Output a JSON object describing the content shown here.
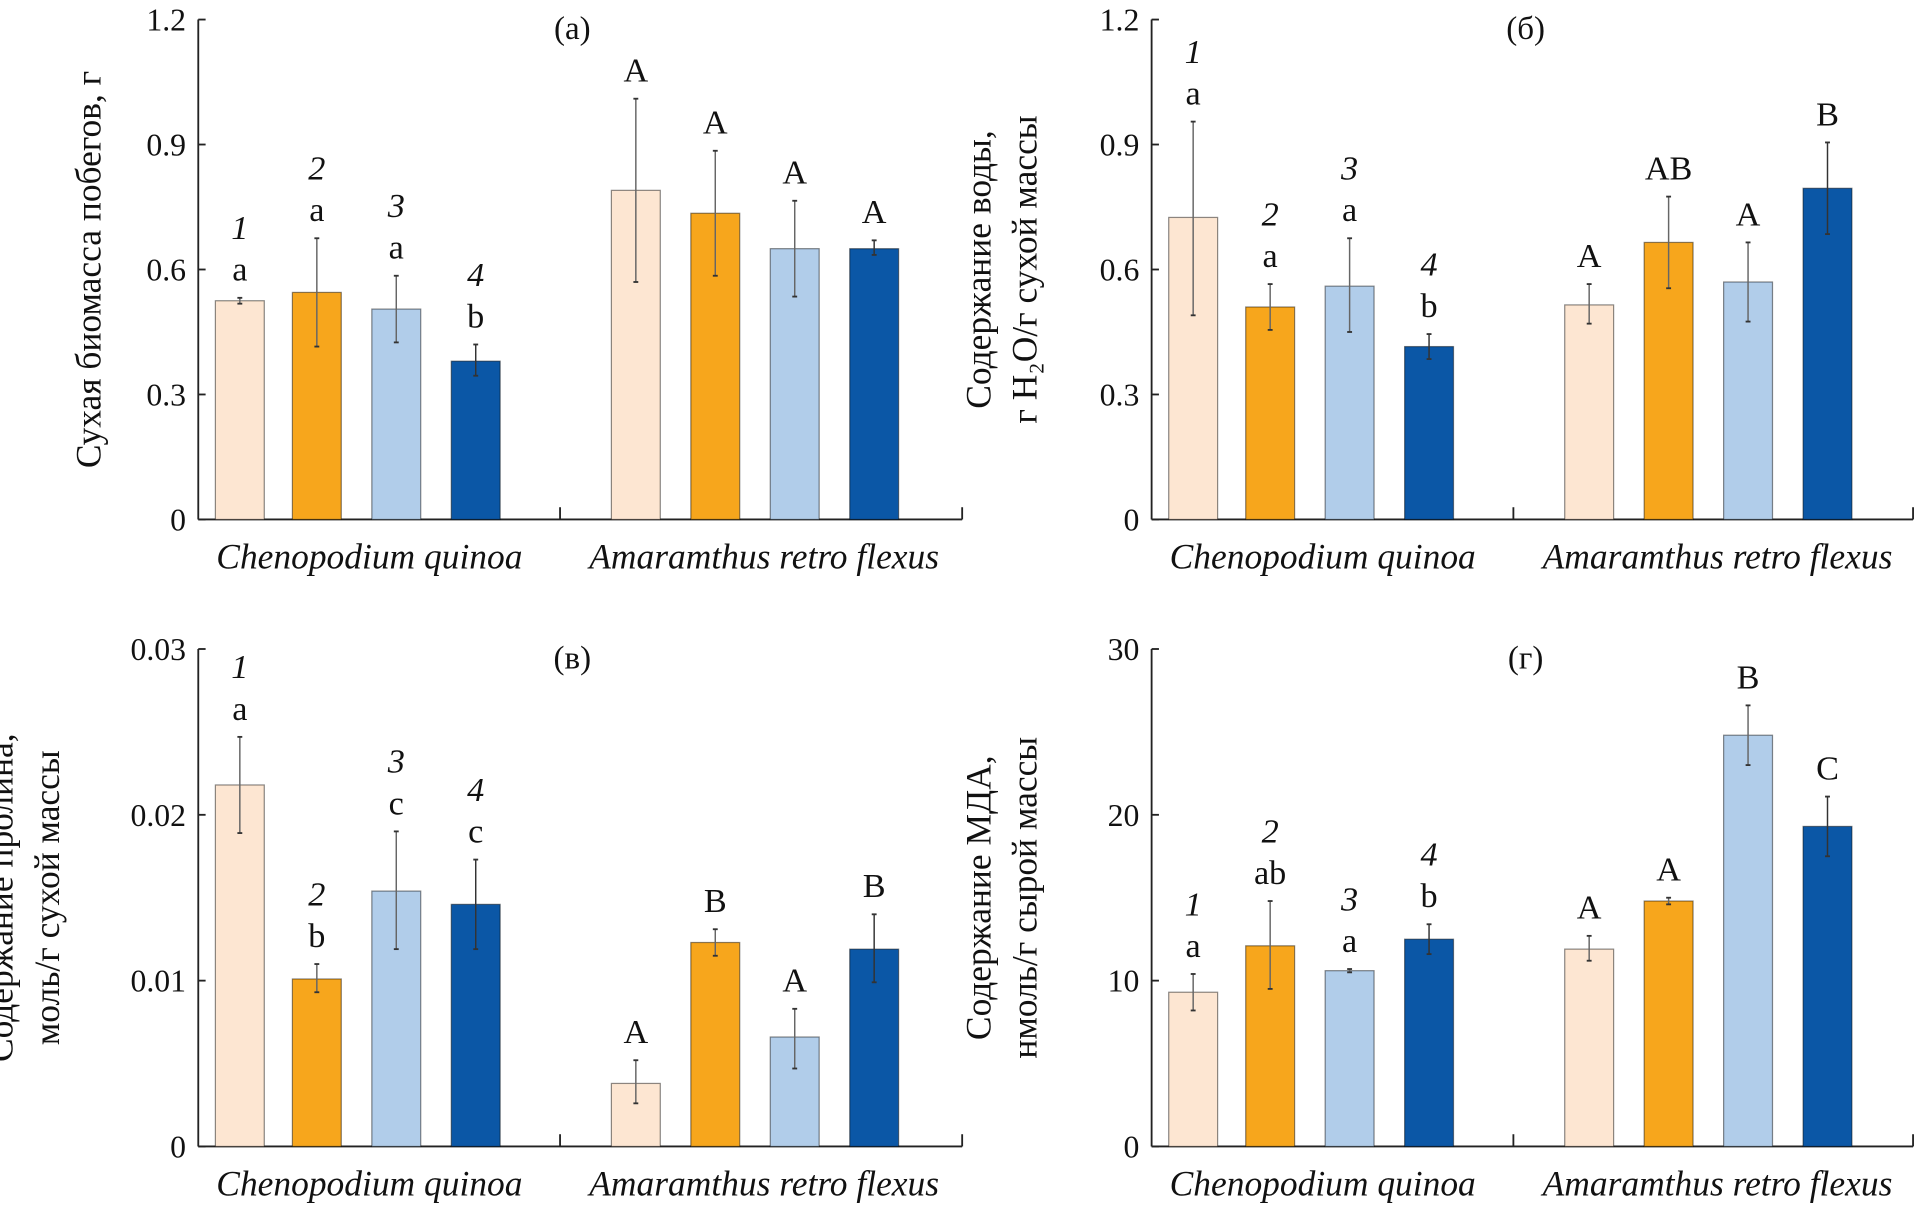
{
  "colors": [
    "#fde6d2",
    "#f7a61c",
    "#b1cdea",
    "#0b57a6"
  ],
  "chart_data": [
    {
      "type": "bar",
      "title": "(а)",
      "ylabel": [
        "Сухая биомасса побегов, г"
      ],
      "ylim": [
        0,
        1.2
      ],
      "yticks": [
        "0",
        "0.3",
        "0.6",
        "0.9",
        "1.2"
      ],
      "groups": [
        "Chenopodium quinoa",
        "Amaramthus retro flexus"
      ],
      "bar_numbers": [
        "1",
        "2",
        "3",
        "4"
      ],
      "values": [
        [
          0.525,
          0.545,
          0.505,
          0.38
        ],
        [
          0.79,
          0.735,
          0.65,
          0.65
        ]
      ],
      "err_low": [
        [
          0.518,
          0.415,
          0.425,
          0.345
        ],
        [
          0.57,
          0.585,
          0.535,
          0.635
        ]
      ],
      "err_high": [
        [
          0.532,
          0.675,
          0.585,
          0.42
        ],
        [
          1.01,
          0.885,
          0.765,
          0.67
        ]
      ],
      "letters": [
        [
          "a",
          "a",
          "a",
          "b"
        ],
        [
          "A",
          "A",
          "A",
          "A"
        ]
      ]
    },
    {
      "type": "bar",
      "title": "(б)",
      "ylabel": [
        "Содержание воды,",
        "г H₂O/г сухой массы"
      ],
      "ylim": [
        0,
        1.2
      ],
      "yticks": [
        "0",
        "0.3",
        "0.6",
        "0.9",
        "1.2"
      ],
      "groups": [
        "Chenopodium quinoa",
        "Amaramthus retro flexus"
      ],
      "bar_numbers": [
        "1",
        "2",
        "3",
        "4"
      ],
      "values": [
        [
          0.725,
          0.51,
          0.56,
          0.415
        ],
        [
          0.515,
          0.665,
          0.57,
          0.795
        ]
      ],
      "err_low": [
        [
          0.49,
          0.455,
          0.45,
          0.385
        ],
        [
          0.47,
          0.555,
          0.475,
          0.685
        ]
      ],
      "err_high": [
        [
          0.955,
          0.565,
          0.675,
          0.445
        ],
        [
          0.565,
          0.775,
          0.665,
          0.905
        ]
      ],
      "letters": [
        [
          "a",
          "a",
          "a",
          "b"
        ],
        [
          "A",
          "AB",
          "A",
          "B"
        ]
      ]
    },
    {
      "type": "bar",
      "title": "(в)",
      "ylabel": [
        "Содержание пролина,",
        "моль/г сухой массы"
      ],
      "ylim": [
        0,
        0.03
      ],
      "yticks": [
        "0",
        "0.01",
        "0.02",
        "0.03"
      ],
      "groups": [
        "Chenopodium quinoa",
        "Amaramthus retro flexus"
      ],
      "bar_numbers": [
        "1",
        "2",
        "3",
        "4"
      ],
      "values": [
        [
          0.0218,
          0.0101,
          0.0154,
          0.0146
        ],
        [
          0.0038,
          0.0123,
          0.0066,
          0.0119
        ]
      ],
      "err_low": [
        [
          0.0189,
          0.0093,
          0.0119,
          0.0119
        ],
        [
          0.0026,
          0.0115,
          0.0047,
          0.0099
        ]
      ],
      "err_high": [
        [
          0.0247,
          0.011,
          0.019,
          0.0173
        ],
        [
          0.0052,
          0.0131,
          0.0083,
          0.014
        ]
      ],
      "letters": [
        [
          "a",
          "b",
          "c",
          "c"
        ],
        [
          "A",
          "B",
          "A",
          "B"
        ]
      ]
    },
    {
      "type": "bar",
      "title": "(г)",
      "ylabel": [
        "Содержание МДА,",
        "нмоль/г сырой массы"
      ],
      "ylim": [
        0,
        30
      ],
      "yticks": [
        "0",
        "10",
        "20",
        "30"
      ],
      "groups": [
        "Chenopodium quinoa",
        "Amaramthus retro flexus"
      ],
      "bar_numbers": [
        "1",
        "2",
        "3",
        "4"
      ],
      "values": [
        [
          9.3,
          12.1,
          10.6,
          12.5
        ],
        [
          11.9,
          14.8,
          24.8,
          19.3
        ]
      ],
      "err_low": [
        [
          8.2,
          9.5,
          10.5,
          11.6
        ],
        [
          11.2,
          14.6,
          23.0,
          17.5
        ]
      ],
      "err_high": [
        [
          10.4,
          14.8,
          10.7,
          13.4
        ],
        [
          12.7,
          15.0,
          26.6,
          21.1
        ]
      ],
      "letters": [
        [
          "a",
          "ab",
          "a",
          "b"
        ],
        [
          "A",
          "A",
          "B",
          "C"
        ]
      ]
    }
  ]
}
